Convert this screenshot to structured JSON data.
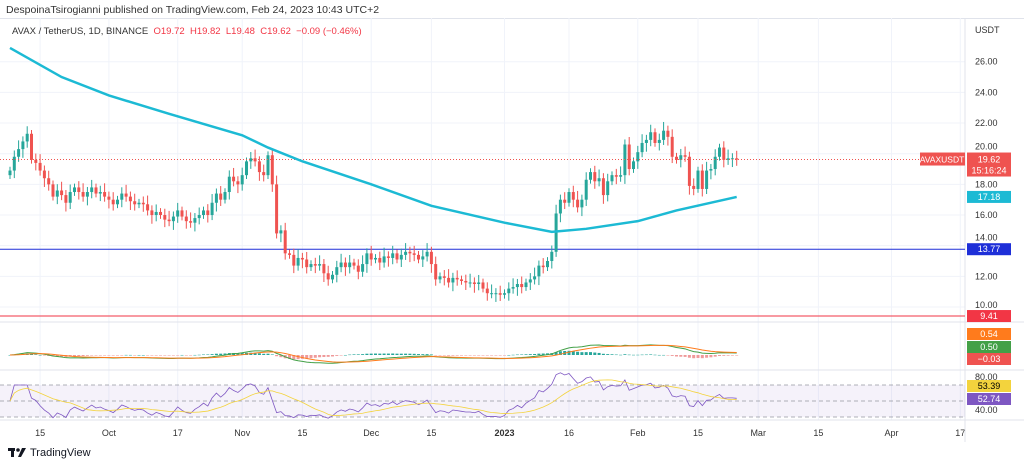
{
  "publisher_line": "DespoinaTsirogianni published on TradingView.com, Feb 24, 2023 10:43 UTC+2",
  "legend": {
    "symbol": "AVAX / TetherUS, 1D, BINANCE",
    "o": "O19.72",
    "h": "H19.82",
    "l": "L19.48",
    "c": "C19.62",
    "change": "−0.09 (−0.46%)"
  },
  "footer": {
    "brand": "TradingView"
  },
  "colors": {
    "up": "#26a69a",
    "down": "#ef5350",
    "ma": "#1cbad4",
    "support": "#1e2fd8",
    "resistance": "#f23645",
    "rsi": "#7e57c2",
    "rsi_ma": "#f3d33d",
    "macd": "#43a047",
    "signal": "#ff7b1c"
  },
  "chart_data": {
    "type": "candlestick",
    "currency_label": "USDT",
    "start_date": "2022-09-08",
    "closes": [
      18.9,
      19.8,
      20.3,
      20.8,
      21.3,
      19.6,
      19.4,
      18.9,
      18.4,
      18.0,
      17.2,
      17.6,
      17.3,
      16.8,
      17.5,
      17.8,
      17.5,
      17.2,
      17.5,
      17.8,
      17.4,
      17.5,
      17.2,
      17.0,
      16.7,
      17.0,
      17.4,
      17.2,
      16.9,
      16.7,
      16.8,
      16.7,
      16.3,
      16.0,
      16.2,
      16.0,
      15.7,
      15.6,
      15.9,
      16.3,
      15.9,
      15.6,
      15.5,
      15.8,
      16.0,
      16.3,
      16.0,
      16.8,
      17.4,
      17.0,
      17.5,
      18.5,
      18.2,
      18.0,
      18.6,
      19.5,
      19.7,
      19.5,
      18.8,
      18.6,
      19.9,
      18.0,
      14.8,
      15.0,
      13.5,
      13.4,
      12.7,
      13.2,
      13.1,
      12.6,
      12.8,
      12.7,
      12.8,
      12.2,
      11.8,
      12.1,
      12.6,
      12.9,
      12.6,
      12.9,
      12.7,
      12.3,
      12.8,
      13.5,
      13.1,
      13.2,
      12.9,
      13.3,
      13.2,
      13.5,
      13.1,
      13.4,
      13.6,
      13.5,
      13.4,
      13.1,
      13.3,
      13.6,
      12.8,
      11.8,
      12.0,
      11.9,
      11.6,
      11.9,
      11.8,
      11.7,
      11.6,
      11.6,
      11.5,
      11.6,
      11.2,
      10.9,
      10.9,
      10.9,
      10.8,
      10.9,
      11.2,
      11.3,
      11.5,
      11.3,
      11.6,
      11.8,
      12.0,
      12.7,
      12.6,
      13.0,
      13.6,
      16.1,
      17.0,
      16.8,
      17.5,
      17.0,
      16.5,
      17.0,
      18.3,
      18.8,
      18.2,
      18.4,
      17.3,
      18.2,
      18.6,
      18.5,
      18.6,
      20.6,
      19.0,
      19.5,
      20.1,
      20.7,
      20.9,
      21.4,
      20.7,
      20.9,
      21.5,
      21.1,
      19.8,
      19.6,
      19.9,
      19.8,
      17.9,
      17.7,
      18.9,
      17.7,
      18.9,
      19.0,
      19.8,
      20.4,
      19.6,
      19.7,
      19.7,
      19.62
    ],
    "moving_average": [
      [
        "2022-09-08",
        26.9
      ],
      [
        "2022-09-20",
        25.0
      ],
      [
        "2022-10-01",
        23.8
      ],
      [
        "2022-10-15",
        22.6
      ],
      [
        "2022-11-01",
        21.2
      ],
      [
        "2022-11-07",
        20.4
      ],
      [
        "2022-11-15",
        19.5
      ],
      [
        "2022-12-01",
        18.0
      ],
      [
        "2022-12-15",
        16.6
      ],
      [
        "2023-01-01",
        15.5
      ],
      [
        "2023-01-12",
        14.9
      ],
      [
        "2023-01-20",
        15.1
      ],
      [
        "2023-02-01",
        15.6
      ],
      [
        "2023-02-10",
        16.3
      ],
      [
        "2023-02-24",
        17.18
      ]
    ],
    "hlines": [
      {
        "value": 13.77,
        "label": "13.77",
        "color": "#1e2fd8"
      },
      {
        "value": 9.41,
        "label": "9.41",
        "color": "#f23645"
      }
    ],
    "y_ticks": [
      "10.00",
      "12.00",
      "14.00",
      "16.00",
      "18.00",
      "20.00",
      "22.00",
      "24.00",
      "26.00"
    ],
    "ylim": [
      9,
      27.5
    ],
    "x_ticks": [
      [
        "15",
        "2022-09-15"
      ],
      [
        "Oct",
        "2022-10-01"
      ],
      [
        "17",
        "2022-10-17"
      ],
      [
        "Nov",
        "2022-11-01"
      ],
      [
        "15",
        "2022-11-15"
      ],
      [
        "Dec",
        "2022-12-01"
      ],
      [
        "15",
        "2022-12-15"
      ],
      [
        "2023",
        "2023-01-01"
      ],
      [
        "16",
        "2023-01-16"
      ],
      [
        "Feb",
        "2023-02-01"
      ],
      [
        "15",
        "2023-02-15"
      ],
      [
        "Mar",
        "2023-03-01"
      ],
      [
        "15",
        "2023-03-15"
      ],
      [
        "Apr",
        "2023-04-01"
      ],
      [
        "17",
        "2023-04-17"
      ]
    ],
    "last_price": {
      "symbol": "AVAXUSDT",
      "price": "19.62",
      "countdown": "15:16:24"
    },
    "ma_label": "17.18",
    "macd": {
      "labels": [
        "0.54",
        "0.50",
        "−0.03"
      ]
    },
    "rsi": {
      "ticks": [
        "80.00",
        "40.00"
      ],
      "labels": [
        "53.39",
        "52.74"
      ]
    }
  }
}
